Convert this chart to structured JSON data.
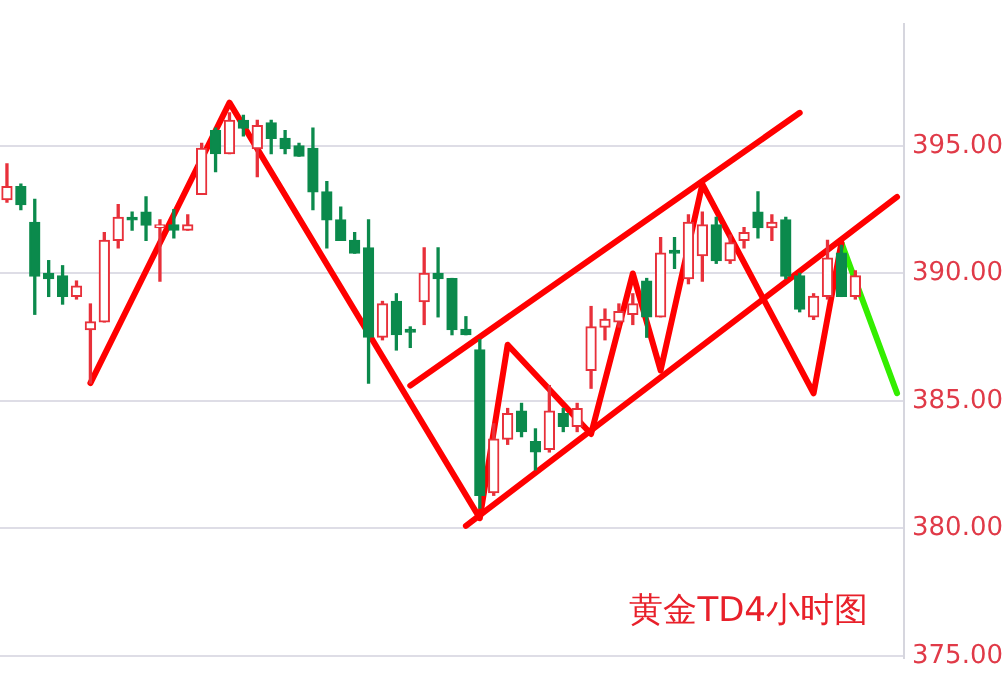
{
  "chart_data": {
    "type": "candlestick",
    "categories": [
      null,
      null,
      null,
      null,
      null,
      null,
      null,
      null,
      null,
      null,
      null,
      null,
      null,
      null,
      null,
      null,
      null,
      null,
      null,
      null,
      null,
      null,
      null,
      null,
      null,
      null,
      null,
      null,
      null,
      null,
      null,
      null,
      null,
      null,
      null,
      null,
      null,
      null,
      null,
      null,
      null,
      null,
      null,
      null,
      null,
      null,
      null,
      null,
      null,
      null,
      null,
      null,
      null,
      null,
      null,
      null,
      null,
      null,
      null,
      null,
      null,
      null,
      null,
      null,
      null
    ],
    "series": [
      {
        "colors": [
          "#e8303a",
          "#0b8a4c",
          "#0b8a4c",
          "#0b8a4c",
          "#0b8a4c",
          "#e8303a",
          "#e8303a",
          "#e8303a",
          "#e8303a",
          "#0b8a4c",
          "#0b8a4c",
          "#e8303a",
          "#0b8a4c",
          "#e8303a",
          "#e8303a",
          "#0b8a4c",
          "#e8303a",
          "#0b8a4c",
          "#e8303a",
          "#0b8a4c",
          "#0b8a4c",
          "#0b8a4c",
          "#0b8a4c",
          "#0b8a4c",
          "#0b8a4c",
          "#0b8a4c",
          "#0b8a4c",
          "#e8303a",
          "#0b8a4c",
          "#0b8a4c",
          "#e8303a",
          "#0b8a4c",
          "#0b8a4c",
          "#0b8a4c",
          "#0b8a4c",
          "#e8303a",
          "#e8303a",
          "#0b8a4c",
          "#0b8a4c",
          "#e8303a",
          "#0b8a4c",
          "#e8303a",
          "#e8303a",
          "#e8303a",
          "#e8303a",
          "#e8303a",
          "#0b8a4c",
          "#e8303a",
          "#0b8a4c",
          "#e8303a",
          "#e8303a",
          "#0b8a4c",
          "#e8303a",
          "#e8303a",
          "#0b8a4c",
          "#e8303a",
          "#0b8a4c",
          "#0b8a4c",
          "#e8303a",
          "#e8303a",
          "#0b8a4c",
          "#e8303a",
          null,
          null,
          null
        ],
        "ohlc": [
          [
            392.9,
            394.3,
            392.8,
            393.4
          ],
          [
            393.4,
            393.5,
            392.5,
            392.7
          ],
          [
            392.0,
            392.9,
            388.4,
            389.9
          ],
          [
            390.0,
            390.5,
            389.1,
            389.8
          ],
          [
            389.9,
            390.3,
            388.8,
            389.1
          ],
          [
            389.1,
            389.7,
            389.0,
            389.5
          ],
          [
            387.8,
            388.8,
            385.7,
            388.1
          ],
          [
            388.1,
            391.6,
            388.1,
            391.3
          ],
          [
            391.3,
            392.7,
            391.0,
            392.2
          ],
          [
            392.2,
            392.4,
            391.7,
            392.1
          ],
          [
            392.4,
            393.0,
            391.3,
            391.9
          ],
          [
            391.8,
            392.1,
            389.7,
            391.9
          ],
          [
            391.9,
            392.5,
            391.4,
            391.7
          ],
          [
            391.7,
            392.3,
            391.7,
            391.9
          ],
          [
            393.1,
            395.1,
            393.1,
            394.9
          ],
          [
            395.6,
            395.7,
            394.0,
            394.7
          ],
          [
            394.7,
            396.3,
            394.7,
            396.0
          ],
          [
            396.0,
            396.2,
            395.4,
            395.7
          ],
          [
            394.9,
            396.0,
            393.8,
            395.8
          ],
          [
            395.9,
            396.0,
            394.7,
            395.3
          ],
          [
            395.3,
            395.6,
            394.7,
            394.9
          ],
          [
            395.0,
            395.1,
            394.6,
            394.6
          ],
          [
            394.9,
            395.7,
            392.5,
            393.2
          ],
          [
            393.2,
            393.6,
            391.0,
            392.1
          ],
          [
            392.1,
            392.6,
            391.3,
            391.3
          ],
          [
            391.3,
            391.6,
            390.8,
            390.8
          ],
          [
            391.0,
            392.1,
            385.7,
            387.5
          ],
          [
            387.5,
            388.9,
            387.4,
            388.8
          ],
          [
            388.9,
            389.2,
            387.0,
            387.6
          ],
          [
            387.8,
            387.9,
            387.1,
            387.7
          ],
          [
            388.9,
            391.0,
            388.0,
            390.0
          ],
          [
            390.0,
            391.0,
            388.3,
            389.8
          ],
          [
            389.8,
            389.8,
            387.6,
            387.8
          ],
          [
            387.8,
            388.3,
            387.6,
            387.6
          ],
          [
            387.0,
            387.4,
            380.8,
            381.3
          ],
          [
            381.4,
            384.1,
            381.3,
            383.5
          ],
          [
            383.5,
            384.7,
            383.3,
            384.5
          ],
          [
            384.6,
            384.9,
            383.6,
            383.8
          ],
          [
            383.4,
            383.9,
            382.3,
            383.0
          ],
          [
            383.1,
            385.6,
            383.0,
            384.6
          ],
          [
            384.5,
            384.7,
            383.8,
            384.0
          ],
          [
            384.0,
            384.9,
            383.8,
            384.7
          ],
          [
            386.2,
            388.7,
            385.5,
            387.9
          ],
          [
            387.9,
            388.6,
            387.4,
            388.2
          ],
          [
            388.1,
            388.8,
            387.9,
            388.5
          ],
          [
            388.4,
            389.2,
            388.0,
            388.8
          ],
          [
            389.7,
            389.8,
            387.5,
            388.3
          ],
          [
            388.3,
            391.4,
            388.3,
            390.8
          ],
          [
            390.9,
            391.4,
            390.2,
            390.8
          ],
          [
            389.8,
            392.3,
            389.6,
            392.0
          ],
          [
            390.7,
            392.4,
            389.7,
            391.9
          ],
          [
            391.9,
            392.2,
            390.4,
            390.5
          ],
          [
            390.5,
            391.5,
            390.4,
            391.2
          ],
          [
            391.3,
            391.8,
            391.0,
            391.6
          ],
          [
            392.4,
            393.2,
            391.4,
            391.8
          ],
          [
            391.8,
            392.3,
            391.3,
            392.0
          ],
          [
            392.1,
            392.2,
            389.8,
            389.9
          ],
          [
            389.9,
            390.0,
            388.5,
            388.6
          ],
          [
            388.3,
            389.2,
            388.2,
            389.1
          ],
          [
            389.1,
            391.3,
            389.0,
            390.6
          ],
          [
            390.8,
            391.1,
            389.1,
            389.1
          ],
          [
            389.1,
            390.1,
            389.0,
            389.9
          ],
          null,
          null,
          null
        ]
      },
      {
        "type": "line",
        "color": "#ff0000",
        "values": [
          null,
          null,
          null,
          null,
          null,
          null,
          385.7,
          null,
          null,
          null,
          null,
          null,
          null,
          null,
          null,
          null,
          396.7,
          null,
          null,
          null,
          null,
          null,
          null,
          null,
          null,
          null,
          null,
          null,
          null,
          null,
          null,
          null,
          null,
          null,
          380.4,
          null,
          387.2,
          null,
          null,
          null,
          null,
          null,
          383.7,
          null,
          null,
          390.0,
          null,
          386.2,
          null,
          null,
          393.5,
          null,
          null,
          null,
          null,
          null,
          null,
          null,
          385.3,
          null,
          391.2,
          null,
          null,
          null,
          null
        ]
      },
      {
        "type": "line",
        "color": "#ff0000",
        "values": [
          null,
          null,
          null,
          null,
          null,
          null,
          null,
          null,
          null,
          null,
          null,
          null,
          null,
          null,
          null,
          null,
          null,
          null,
          null,
          null,
          null,
          null,
          null,
          null,
          null,
          null,
          null,
          null,
          null,
          null,
          null,
          null,
          null,
          380.1,
          null,
          null,
          null,
          null,
          null,
          null,
          null,
          null,
          null,
          null,
          null,
          null,
          null,
          null,
          null,
          null,
          null,
          null,
          null,
          null,
          null,
          null,
          null,
          null,
          null,
          null,
          null,
          null,
          null,
          null,
          393.0
        ]
      },
      {
        "type": "line",
        "color": "#ff0000",
        "values": [
          null,
          null,
          null,
          null,
          null,
          null,
          null,
          null,
          null,
          null,
          null,
          null,
          null,
          null,
          null,
          null,
          null,
          null,
          null,
          null,
          null,
          null,
          null,
          null,
          null,
          null,
          null,
          null,
          null,
          385.6,
          null,
          null,
          null,
          null,
          null,
          null,
          null,
          null,
          null,
          null,
          null,
          null,
          null,
          null,
          null,
          null,
          null,
          null,
          null,
          null,
          null,
          null,
          null,
          null,
          null,
          null,
          null,
          396.3,
          null,
          null,
          null,
          null,
          null,
          null,
          null
        ]
      },
      {
        "type": "line",
        "color": "#33ee00",
        "values": [
          null,
          null,
          null,
          null,
          null,
          null,
          null,
          null,
          null,
          null,
          null,
          null,
          null,
          null,
          null,
          null,
          null,
          null,
          null,
          null,
          null,
          null,
          null,
          null,
          null,
          null,
          null,
          null,
          null,
          null,
          null,
          null,
          null,
          null,
          null,
          null,
          null,
          null,
          null,
          null,
          null,
          null,
          null,
          null,
          null,
          null,
          null,
          null,
          null,
          null,
          null,
          null,
          null,
          null,
          null,
          null,
          null,
          null,
          null,
          null,
          391.2,
          null,
          null,
          null,
          385.3
        ]
      }
    ],
    "ylim": [
      374.9,
      399.8
    ],
    "yticks": [
      {
        "value": 375,
        "label": "375.00"
      },
      {
        "value": 380,
        "label": "380.00"
      },
      {
        "value": 385,
        "label": "385.00"
      },
      {
        "value": 390,
        "label": "390.00"
      },
      {
        "value": 395,
        "label": "395.00"
      }
    ],
    "grid": "y",
    "tick_labels": "y",
    "annotations": [
      "黄金TD4小时图"
    ]
  }
}
